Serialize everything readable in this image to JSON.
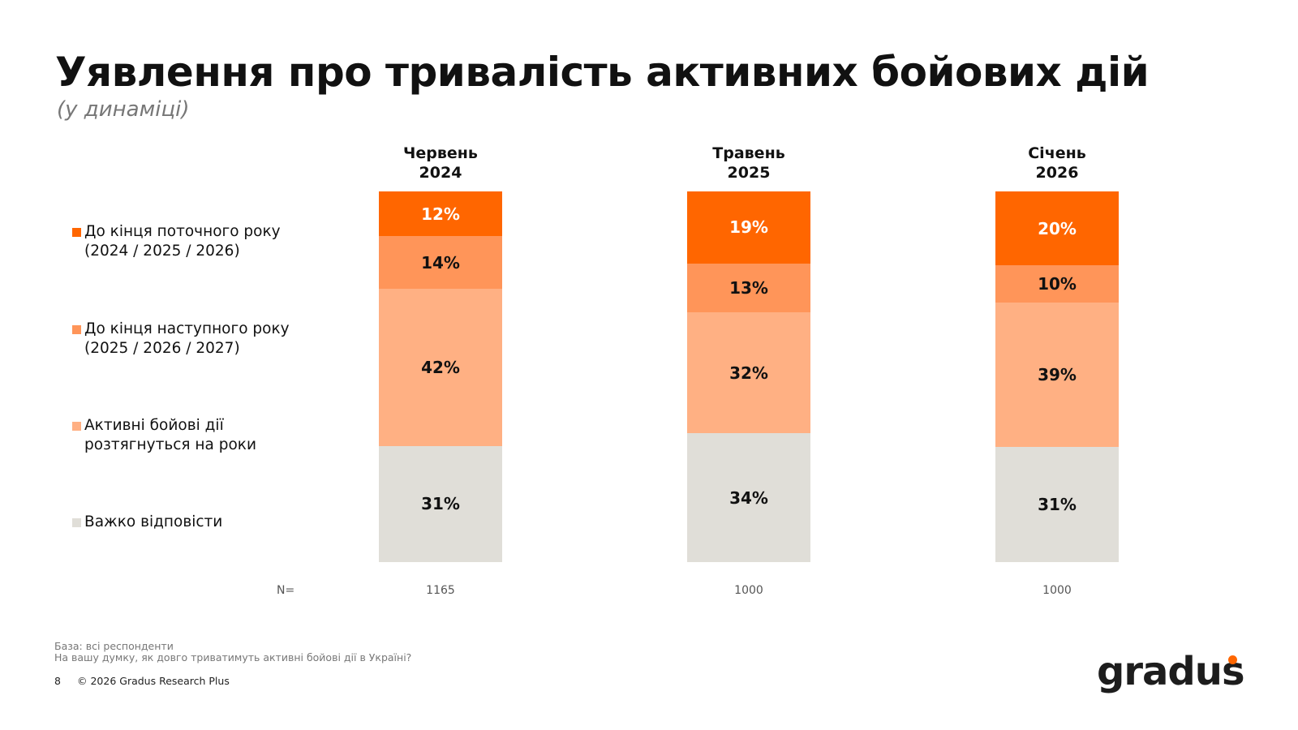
{
  "title": "Уявлення про тривалість активних бойових дій",
  "subtitle": "(у динаміці)",
  "chart_data": {
    "type": "bar",
    "stacked": true,
    "percent": true,
    "categories": [
      "Червень 2024",
      "Травень 2025",
      "Січень 2026"
    ],
    "category_lines": [
      [
        "Червень",
        "2024"
      ],
      [
        "Травень",
        "2025"
      ],
      [
        "Січень",
        "2026"
      ]
    ],
    "series": [
      {
        "name": "Важко відповісти",
        "color": "#E0DED8",
        "values": [
          31,
          34,
          31
        ]
      },
      {
        "name": "Активні бойові дії розтягнуться на роки",
        "name_lines": [
          "Активні бойові дії",
          "розтягнуться на роки"
        ],
        "color": "#FFB083",
        "values": [
          42,
          32,
          39
        ]
      },
      {
        "name": "До кінця наступного року (2025 / 2026 / 2027)",
        "name_lines": [
          "До кінця наступного року",
          "(2025 / 2026 / 2027)"
        ],
        "color": "#FF9559",
        "values": [
          14,
          13,
          10
        ]
      },
      {
        "name": "До кінця поточного року (2024 / 2025 / 2026)",
        "name_lines": [
          "До кінця поточного року",
          "(2024 / 2025 / 2026)"
        ],
        "color": "#FF6600",
        "values": [
          12,
          19,
          20
        ]
      }
    ],
    "legend_position": "left",
    "grid": false,
    "n_label": "N=",
    "n_values": [
      "1165",
      "1000",
      "1000"
    ]
  },
  "footer": {
    "base": "База: всі респонденти",
    "question": "На вашу думку, як довго триватимуть активні бойові дії в Україні?",
    "page": "8",
    "copyright": "© 2026 Gradus Research Plus"
  },
  "logo": "gradus",
  "brand_color": "#FF6600"
}
